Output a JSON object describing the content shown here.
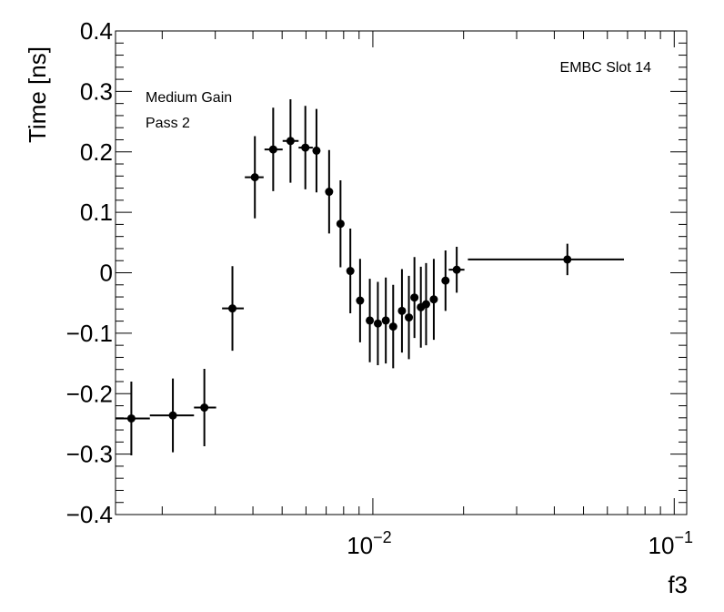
{
  "chart_data": {
    "type": "scatter",
    "xlabel": "f3",
    "ylabel": "Time [ns]",
    "xscale": "log",
    "xlim": [
      0.0014,
      0.11
    ],
    "ylim": [
      -0.4,
      0.4
    ],
    "grid": false,
    "legend": "none",
    "x_tick_labels": [
      {
        "value": 0.01,
        "base": "10",
        "exp": "−2"
      },
      {
        "value": 0.1,
        "base": "10",
        "exp": "−1"
      }
    ],
    "y_tick_labels": [
      {
        "value": -0.4,
        "text": "−0.4"
      },
      {
        "value": -0.3,
        "text": "−0.3"
      },
      {
        "value": -0.2,
        "text": "−0.2"
      },
      {
        "value": -0.1,
        "text": "−0.1"
      },
      {
        "value": 0,
        "text": "0"
      },
      {
        "value": 0.1,
        "text": "0.1"
      },
      {
        "value": 0.2,
        "text": "0.2"
      },
      {
        "value": 0.3,
        "text": "0.3"
      },
      {
        "value": 0.4,
        "text": "0.4"
      }
    ],
    "annotations": {
      "detector": "EMBC Slot 14",
      "gain": "Medium Gain",
      "pass": "Pass 2"
    },
    "points": [
      {
        "x": 0.00158,
        "y": -0.241,
        "xlo": 0.0014,
        "xhi": 0.00182,
        "yerr": 0.061
      },
      {
        "x": 0.00217,
        "y": -0.236,
        "xlo": 0.00182,
        "xhi": 0.00255,
        "yerr": 0.061
      },
      {
        "x": 0.00276,
        "y": -0.223,
        "xlo": 0.00255,
        "xhi": 0.00302,
        "yerr": 0.064
      },
      {
        "x": 0.00342,
        "y": -0.059,
        "xlo": 0.00316,
        "xhi": 0.00373,
        "yerr": 0.07
      },
      {
        "x": 0.00406,
        "y": 0.158,
        "xlo": 0.00376,
        "xhi": 0.00434,
        "yerr": 0.068
      },
      {
        "x": 0.00467,
        "y": 0.204,
        "xlo": 0.00437,
        "xhi": 0.00502,
        "yerr": 0.069
      },
      {
        "x": 0.00533,
        "y": 0.218,
        "xlo": 0.00502,
        "xhi": 0.00567,
        "yerr": 0.069
      },
      {
        "x": 0.00597,
        "y": 0.207,
        "xlo": 0.00567,
        "xhi": 0.00632,
        "yerr": 0.069
      },
      {
        "x": 0.0065,
        "y": 0.202,
        "xlo": 0.00632,
        "xhi": 0.00668,
        "yerr": 0.069
      },
      {
        "x": 0.00716,
        "y": 0.134,
        "xlo": 0.00699,
        "xhi": 0.00734,
        "yerr": 0.069
      },
      {
        "x": 0.00781,
        "y": 0.081,
        "xlo": 0.00766,
        "xhi": 0.00795,
        "yerr": 0.072
      },
      {
        "x": 0.00842,
        "y": 0.003,
        "xlo": 0.00826,
        "xhi": 0.00857,
        "yerr": 0.07
      },
      {
        "x": 0.00907,
        "y": -0.046,
        "xlo": 0.00894,
        "xhi": 0.00921,
        "yerr": 0.069
      },
      {
        "x": 0.00977,
        "y": -0.079,
        "xlo": 0.00964,
        "xhi": 0.00991,
        "yerr": 0.069
      },
      {
        "x": 0.01039,
        "y": -0.084,
        "xlo": 0.01025,
        "xhi": 0.01054,
        "yerr": 0.069
      },
      {
        "x": 0.01104,
        "y": -0.079,
        "xlo": 0.0109,
        "xhi": 0.01118,
        "yerr": 0.071
      },
      {
        "x": 0.01168,
        "y": -0.089,
        "xlo": 0.01152,
        "xhi": 0.01183,
        "yerr": 0.069
      },
      {
        "x": 0.01249,
        "y": -0.063,
        "xlo": 0.01231,
        "xhi": 0.01266,
        "yerr": 0.069
      },
      {
        "x": 0.01317,
        "y": -0.074,
        "xlo": 0.01298,
        "xhi": 0.01336,
        "yerr": 0.069
      },
      {
        "x": 0.01374,
        "y": -0.041,
        "xlo": 0.01354,
        "xhi": 0.01394,
        "yerr": 0.067
      },
      {
        "x": 0.01443,
        "y": -0.057,
        "xlo": 0.01424,
        "xhi": 0.01463,
        "yerr": 0.067
      },
      {
        "x": 0.01502,
        "y": -0.052,
        "xlo": 0.01482,
        "xhi": 0.01522,
        "yerr": 0.068
      },
      {
        "x": 0.01593,
        "y": -0.044,
        "xlo": 0.01572,
        "xhi": 0.01614,
        "yerr": 0.067
      },
      {
        "x": 0.01742,
        "y": -0.013,
        "xlo": 0.01697,
        "xhi": 0.01786,
        "yerr": 0.05
      },
      {
        "x": 0.01898,
        "y": 0.005,
        "xlo": 0.01786,
        "xhi": 0.02013,
        "yerr": 0.038
      },
      {
        "x": 0.0442,
        "y": 0.022,
        "xlo": 0.02067,
        "xhi": 0.0681,
        "yerr": 0.026
      }
    ]
  }
}
